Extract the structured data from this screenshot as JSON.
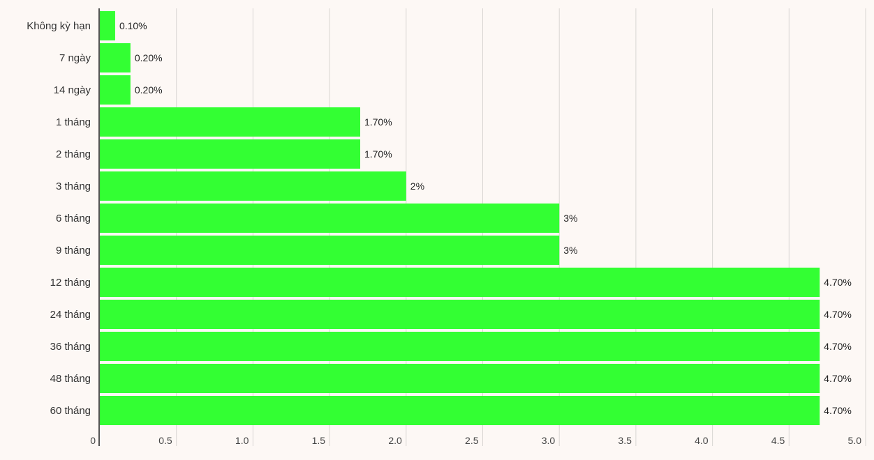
{
  "chart_data": {
    "type": "bar",
    "orientation": "horizontal",
    "categories": [
      "Không kỳ hạn",
      "7 ngày",
      "14 ngày",
      "1 tháng",
      "2 tháng",
      "3 tháng",
      "6 tháng",
      "9 tháng",
      "12 tháng",
      "24 tháng",
      "36 tháng",
      "48 tháng",
      "60 tháng"
    ],
    "values": [
      0.1,
      0.2,
      0.2,
      1.7,
      1.7,
      2.0,
      3.0,
      3.0,
      4.7,
      4.7,
      4.7,
      4.7,
      4.7
    ],
    "value_labels": [
      "0.10%",
      "0.20%",
      "0.20%",
      "1.70%",
      "1.70%",
      "2%",
      "3%",
      "3%",
      "4.70%",
      "4.70%",
      "4.70%",
      "4.70%",
      "4.70%"
    ],
    "x_ticks": [
      "0",
      "0.5",
      "1.0",
      "1.5",
      "2.0",
      "2.5",
      "3.0",
      "3.5",
      "4.0",
      "4.5",
      "5.0"
    ],
    "xlim": [
      0,
      5.0
    ],
    "grid": true,
    "bar_color": "#33ff33",
    "grid_color": "#d9d6d3",
    "axis_color": "#555555",
    "background": "#fdf8f5"
  }
}
